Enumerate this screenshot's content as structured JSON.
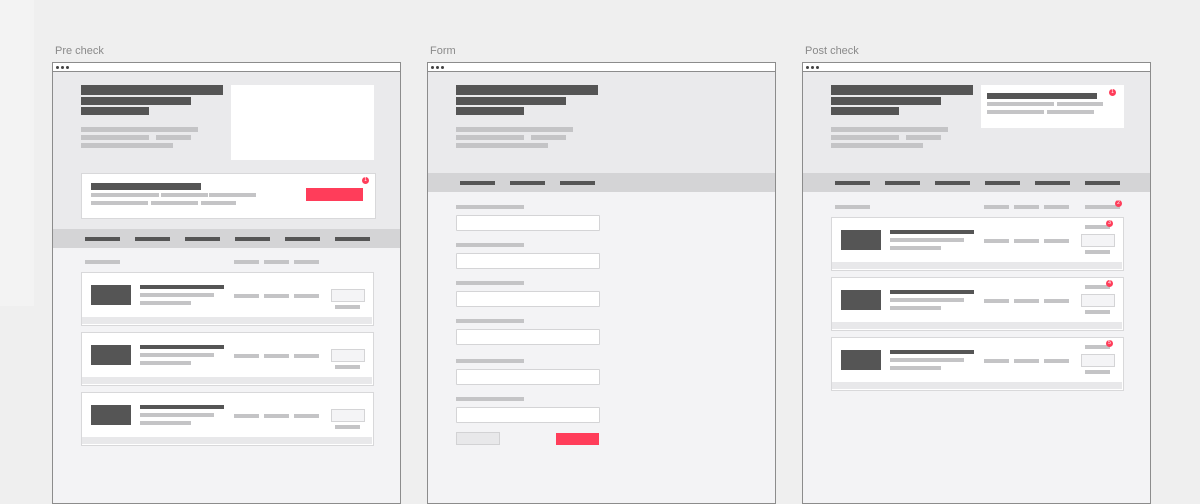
{
  "labels": {
    "pre_check": "Pre check",
    "form": "Form",
    "post_check": "Post check"
  },
  "badges": {
    "pre_cta": "1",
    "post_hero": "1",
    "post_header": "2",
    "post_card_1": "3",
    "post_card_2": "4",
    "post_card_3": "5"
  },
  "colors": {
    "accent": "#ff3d5a",
    "dark_block": "#555555",
    "placeholder_line": "#c4c4c6",
    "nav_band": "#d4d4d6",
    "hero_bg": "#eaeaec",
    "canvas": "#efefef"
  }
}
